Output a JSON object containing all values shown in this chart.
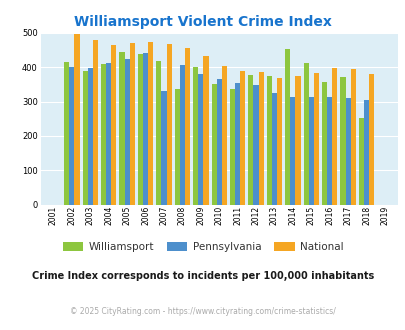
{
  "title": "Williamsport Violent Crime Index",
  "title_color": "#1874cd",
  "years": [
    2001,
    2002,
    2003,
    2004,
    2005,
    2006,
    2007,
    2008,
    2009,
    2010,
    2011,
    2012,
    2013,
    2014,
    2015,
    2016,
    2017,
    2018,
    2019
  ],
  "williamsport": [
    null,
    415,
    390,
    410,
    445,
    440,
    418,
    337,
    402,
    350,
    338,
    377,
    375,
    453,
    412,
    358,
    373,
    252,
    null
  ],
  "pennsylvania": [
    null,
    402,
    397,
    412,
    425,
    442,
    332,
    408,
    381,
    366,
    353,
    348,
    326,
    313,
    314,
    313,
    311,
    306,
    null
  ],
  "national": [
    null,
    498,
    479,
    465,
    472,
    474,
    467,
    457,
    432,
    405,
    390,
    387,
    368,
    376,
    383,
    397,
    394,
    381,
    null
  ],
  "williamsport_color": "#8dc63f",
  "pennsylvania_color": "#4d8fcc",
  "national_color": "#f5a623",
  "background_color": "#ddeef6",
  "ylim": [
    0,
    500
  ],
  "yticks": [
    0,
    100,
    200,
    300,
    400,
    500
  ],
  "subtitle": "Crime Index corresponds to incidents per 100,000 inhabitants",
  "footer": "© 2025 CityRating.com - https://www.cityrating.com/crime-statistics/",
  "subtitle_color": "#1a1a1a",
  "footer_color": "#aaaaaa"
}
